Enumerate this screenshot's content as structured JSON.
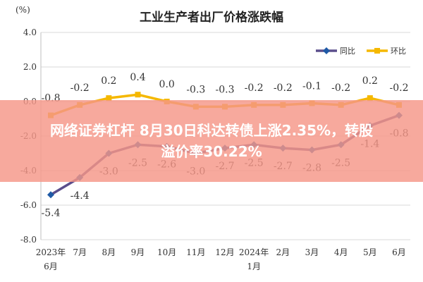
{
  "chart_data": {
    "type": "line",
    "title": "工业生产者出厂价格涨跌幅",
    "unit": "(%)",
    "ylim": [
      -8.0,
      4.0
    ],
    "yticks": [
      "4.0",
      "2.0",
      "0.0",
      "-2.0",
      "-4.0",
      "-6.0",
      "-8.0"
    ],
    "ytick_values": [
      4,
      2,
      0,
      -2,
      -4,
      -6,
      -8
    ],
    "categories": [
      [
        "2023年",
        "6月"
      ],
      [
        "7月"
      ],
      [
        "8月"
      ],
      [
        "9月"
      ],
      [
        "10月"
      ],
      [
        "11月"
      ],
      [
        "12月"
      ],
      [
        "2024年",
        "1月"
      ],
      [
        "2月"
      ],
      [
        "3月"
      ],
      [
        "4月"
      ],
      [
        "5月"
      ],
      [
        "6月"
      ]
    ],
    "grid": true,
    "legend_position": "top-right",
    "series": [
      {
        "name": "同比",
        "color": "#5b4e8c",
        "marker_color": "#1f5aa6",
        "values": [
          -5.4,
          -4.4,
          -3.0,
          -2.5,
          -2.6,
          -3.0,
          -2.7,
          -2.5,
          -2.7,
          -2.8,
          -2.5,
          -1.4,
          -0.8
        ],
        "labels": [
          "-5.4",
          "-4.4",
          "-3.0",
          "-2.5",
          "-2.6",
          "-3.0",
          "-2.7",
          "-2.5",
          "-2.7",
          "-2.8",
          "-2.5",
          "-1.4",
          "-0.8"
        ]
      },
      {
        "name": "环比",
        "color": "#f5b800",
        "marker_color": "#f5b800",
        "values": [
          -0.8,
          -0.2,
          0.2,
          0.4,
          0.0,
          -0.3,
          -0.3,
          -0.2,
          -0.2,
          -0.1,
          -0.2,
          0.2,
          -0.2
        ],
        "labels": [
          "-0.8",
          "-0.2",
          "0.2",
          "0.4",
          "0.0",
          "-0.3",
          "-0.3",
          "-0.2",
          "-0.2",
          "-0.1",
          "-0.2",
          "0.2",
          "-0.2"
        ]
      }
    ]
  },
  "banner": {
    "line1": "网络证券杠杆 8月30日科达转债上涨2.35%，转股",
    "line2": "溢价率30.22%"
  }
}
